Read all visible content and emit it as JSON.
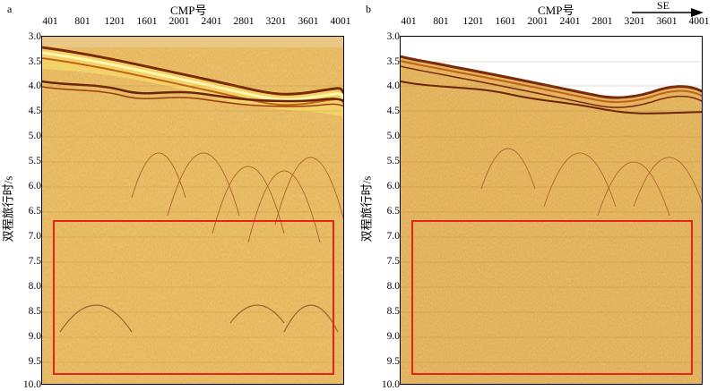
{
  "panels": [
    {
      "letter": "a",
      "x_axis_label": "CMP号",
      "y_axis_label": "双程旅行时/s",
      "x_ticks": [
        "401",
        "801",
        "1201",
        "1601",
        "2001",
        "2401",
        "2801",
        "3201",
        "3601",
        "4001"
      ],
      "y_ticks": [
        "3.0",
        "3.5",
        "4.0",
        "4.5",
        "5.0",
        "5.5",
        "6.0",
        "6.5",
        "7.0",
        "7.5",
        "8.0",
        "8.5",
        "9.0",
        "9.5",
        "10.0"
      ]
    },
    {
      "letter": "b",
      "x_axis_label": "CMP号",
      "y_axis_label": "双程旅行时/s",
      "direction_label": "SE",
      "x_ticks": [
        "401",
        "801",
        "1201",
        "1601",
        "2001",
        "2401",
        "2801",
        "3201",
        "3601",
        "4001"
      ],
      "y_ticks": [
        "3.0",
        "3.5",
        "4.0",
        "4.5",
        "5.0",
        "5.5",
        "6.0",
        "6.5",
        "7.0",
        "7.5",
        "8.0",
        "8.5",
        "9.0",
        "9.5",
        "10.0"
      ]
    }
  ],
  "colors": {
    "background_fill": "#d9a441",
    "highlight_box": "#e8231a",
    "seafloor_dark": "#7a2a0a",
    "seafloor_bright": "#fff6b0"
  }
}
